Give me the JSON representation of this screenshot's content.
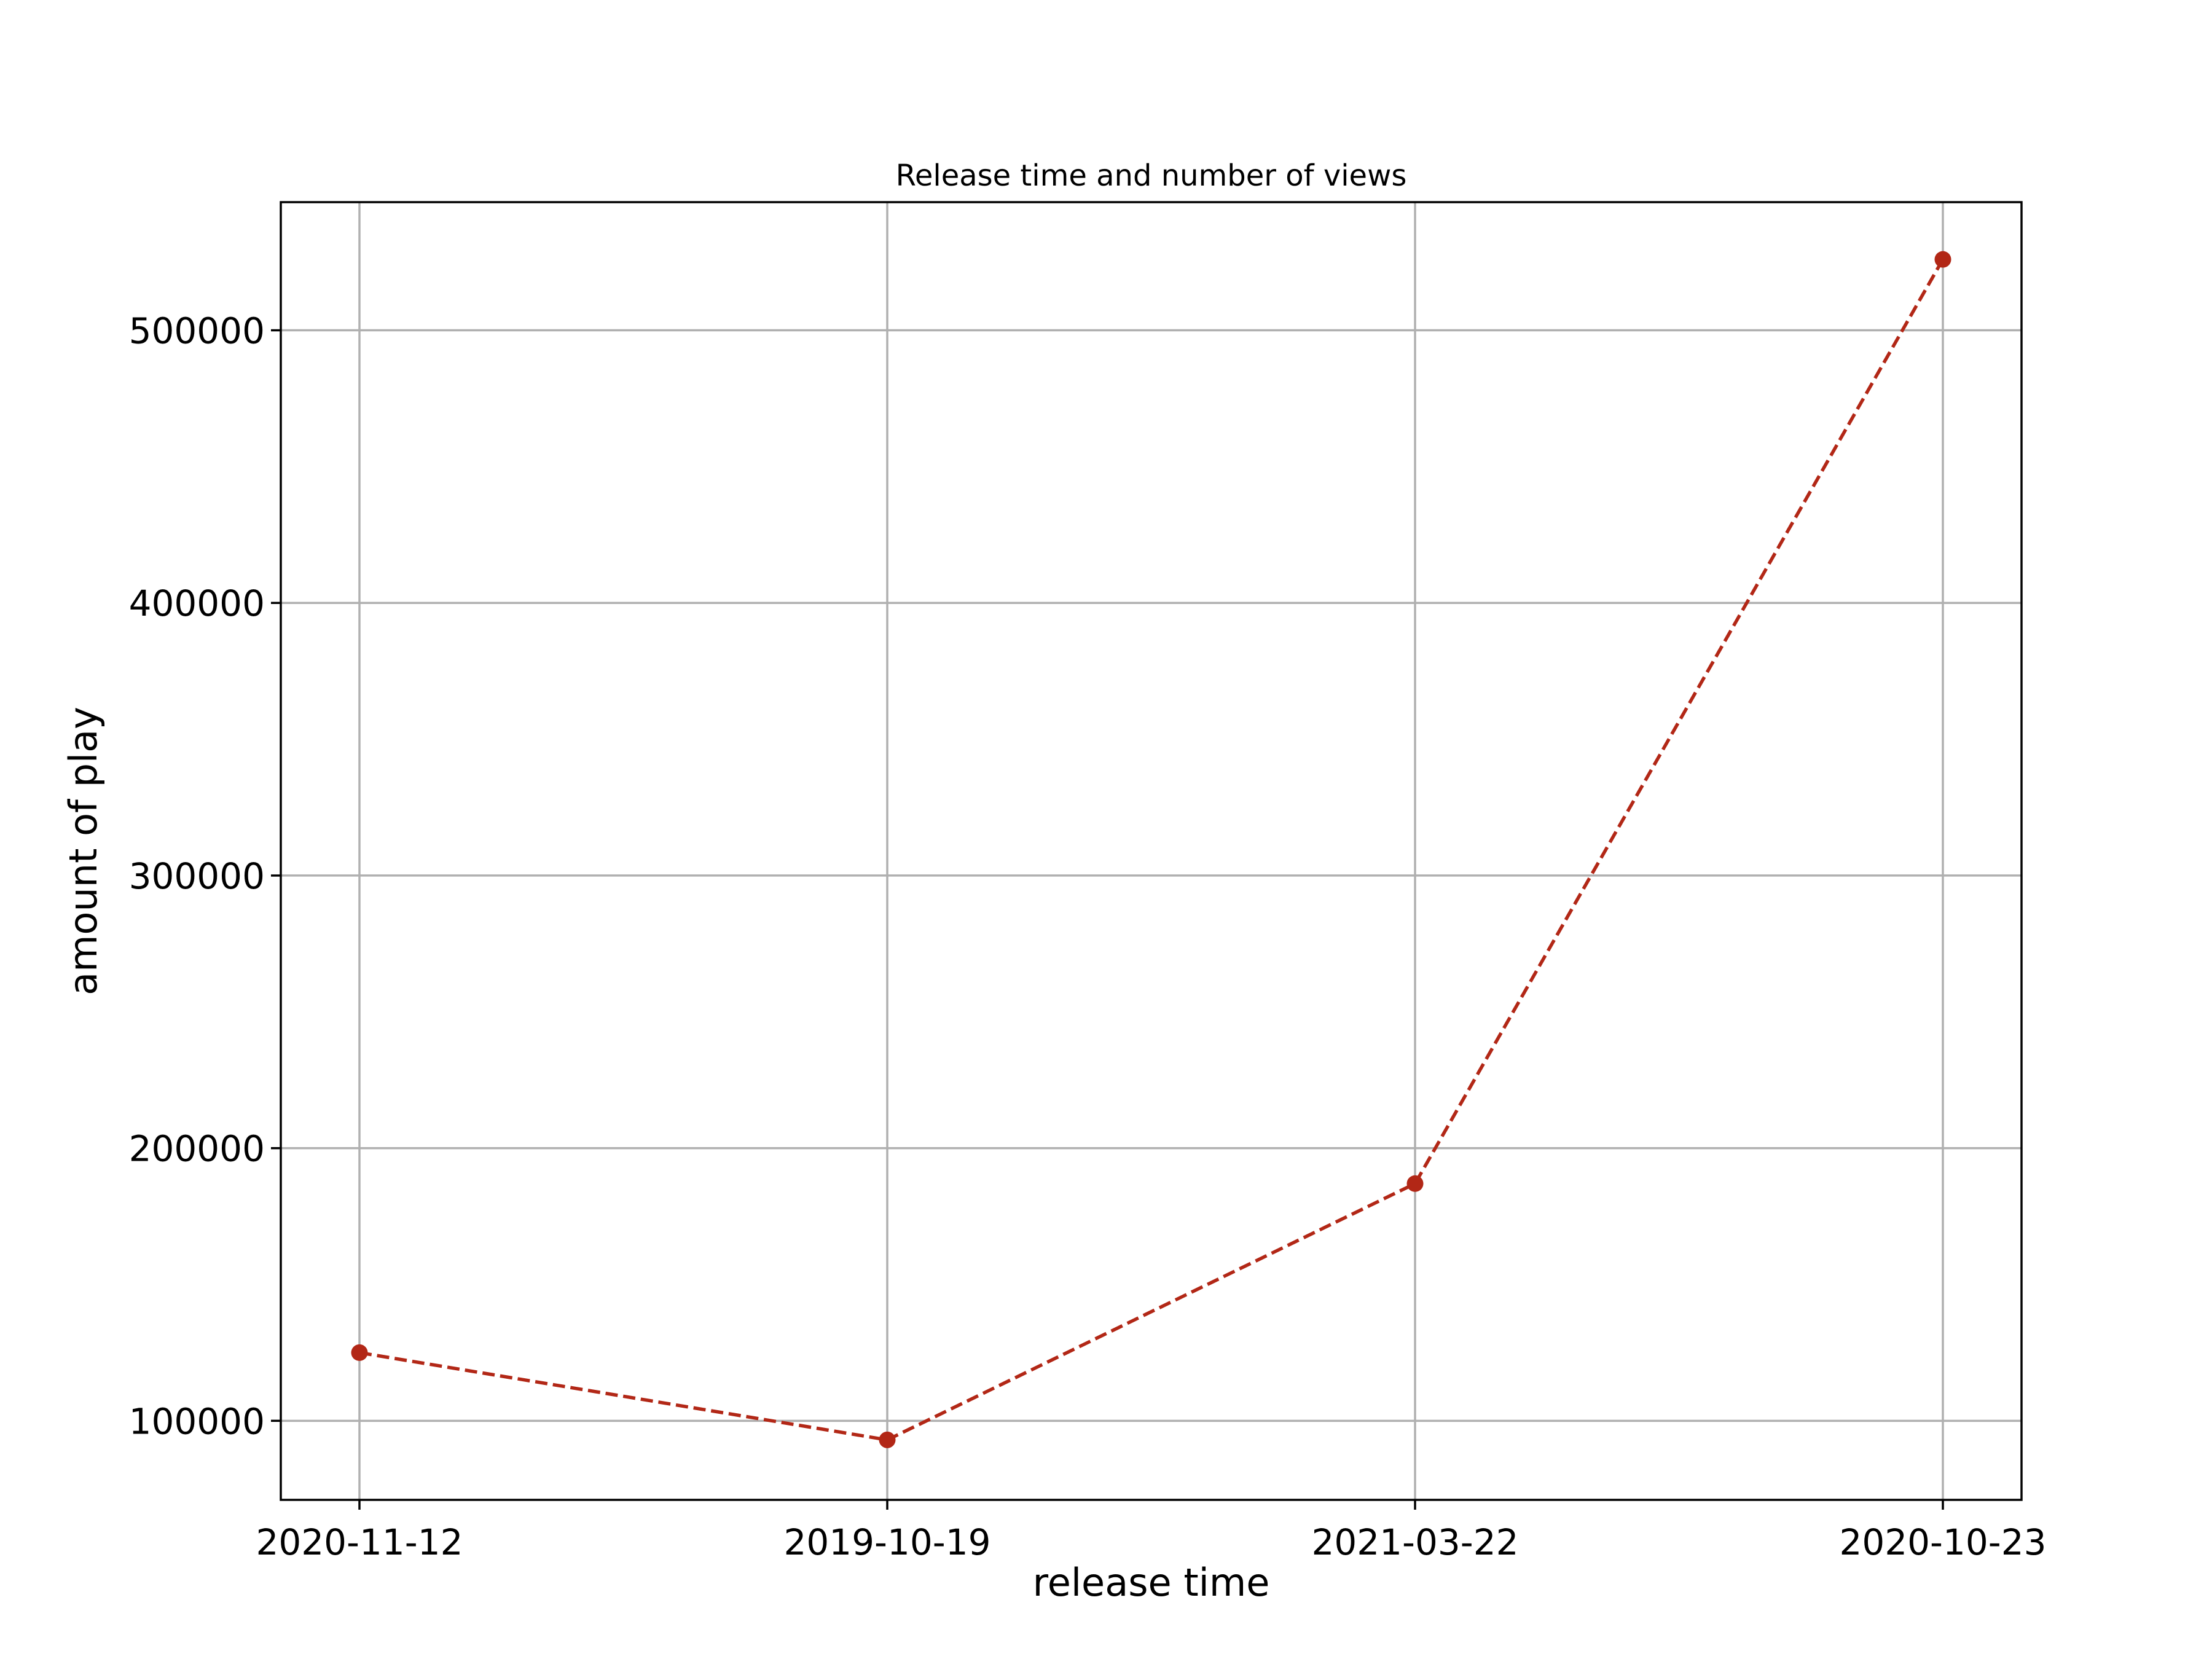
{
  "chart_data": {
    "type": "line",
    "title": "Release time and number of views",
    "xlabel": "release time",
    "ylabel": "amount of play",
    "categories": [
      "2020-11-12",
      "2019-10-19",
      "2021-03-22",
      "2020-10-23"
    ],
    "series": [
      {
        "values": [
          125000,
          93000,
          187000,
          526000
        ],
        "color": "#b22716",
        "line_style": "dashed",
        "marker": "circle"
      }
    ],
    "yticks": [
      100000,
      200000,
      300000,
      400000,
      500000
    ],
    "ytick_labels": [
      "100000",
      "200000",
      "300000",
      "400000",
      "500000"
    ],
    "ylim": [
      71000,
      547000
    ],
    "grid": true
  }
}
